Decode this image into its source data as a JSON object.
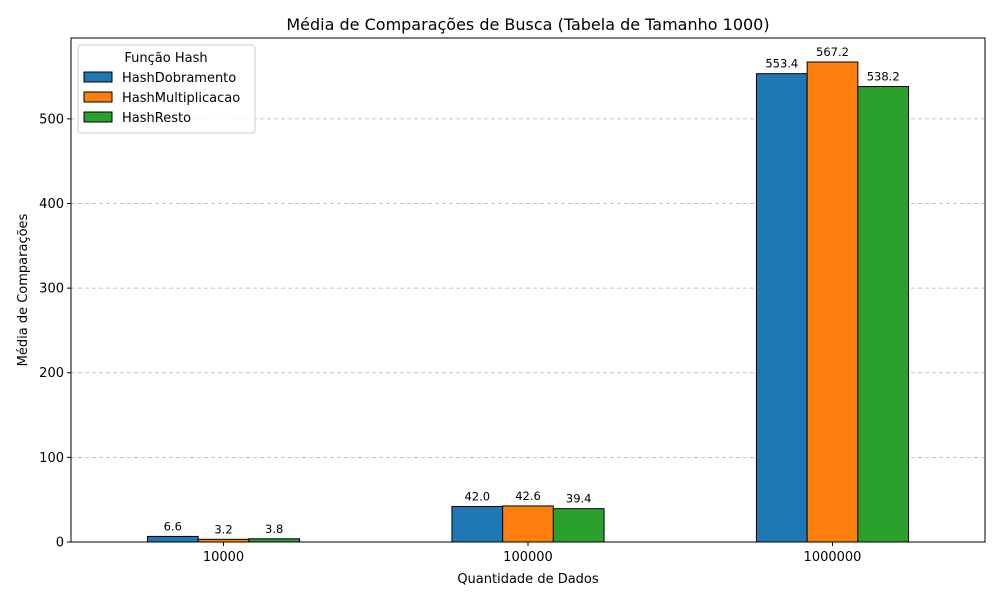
{
  "chart_data": {
    "type": "bar",
    "title": "Média de Comparações de Busca (Tabela de Tamanho 1000)",
    "xlabel": "Quantidade de Dados",
    "ylabel": "Média de Comparações",
    "categories": [
      "10000",
      "100000",
      "1000000"
    ],
    "series": [
      {
        "name": "HashDobramento",
        "values": [
          6.6,
          42.0,
          553.4
        ],
        "labels": [
          "6.6",
          "42.0",
          "553.4"
        ],
        "color": "#1f77b4"
      },
      {
        "name": "HashMultiplicacao",
        "values": [
          3.2,
          42.6,
          567.2
        ],
        "labels": [
          "3.2",
          "42.6",
          "567.2"
        ],
        "color": "#ff7f0e"
      },
      {
        "name": "HashResto",
        "values": [
          3.8,
          39.4,
          538.2
        ],
        "labels": [
          "3.8",
          "39.4",
          "538.2"
        ],
        "color": "#2ca02c"
      }
    ],
    "ylim": [
      0,
      595.56
    ],
    "yticks": [
      0,
      100,
      200,
      300,
      400,
      500
    ],
    "grid": "y-dashed",
    "legend": {
      "title": "Função Hash",
      "position": "top-left"
    }
  }
}
